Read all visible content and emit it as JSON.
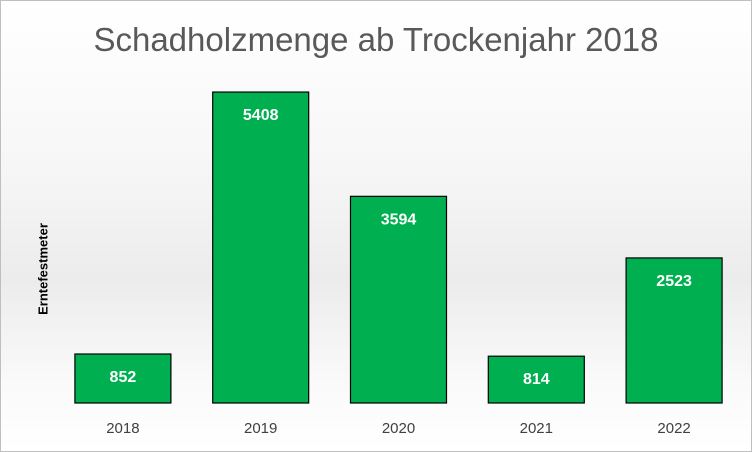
{
  "chart_data": {
    "type": "bar",
    "title": "Schadholzmenge ab Trockenjahr 2018",
    "xlabel": "",
    "ylabel": "Erntefestmeter",
    "categories": [
      "2018",
      "2019",
      "2020",
      "2021",
      "2022"
    ],
    "values": [
      852,
      5408,
      3594,
      814,
      2523
    ],
    "data_labels": [
      "852",
      "5408",
      "3594",
      "814",
      "2523"
    ],
    "ylim": [
      0,
      6000
    ],
    "grid": false,
    "legend": "none",
    "bar_color": "#00B050",
    "bar_border_color": "#000000",
    "label_color": "#FFFFFF"
  }
}
